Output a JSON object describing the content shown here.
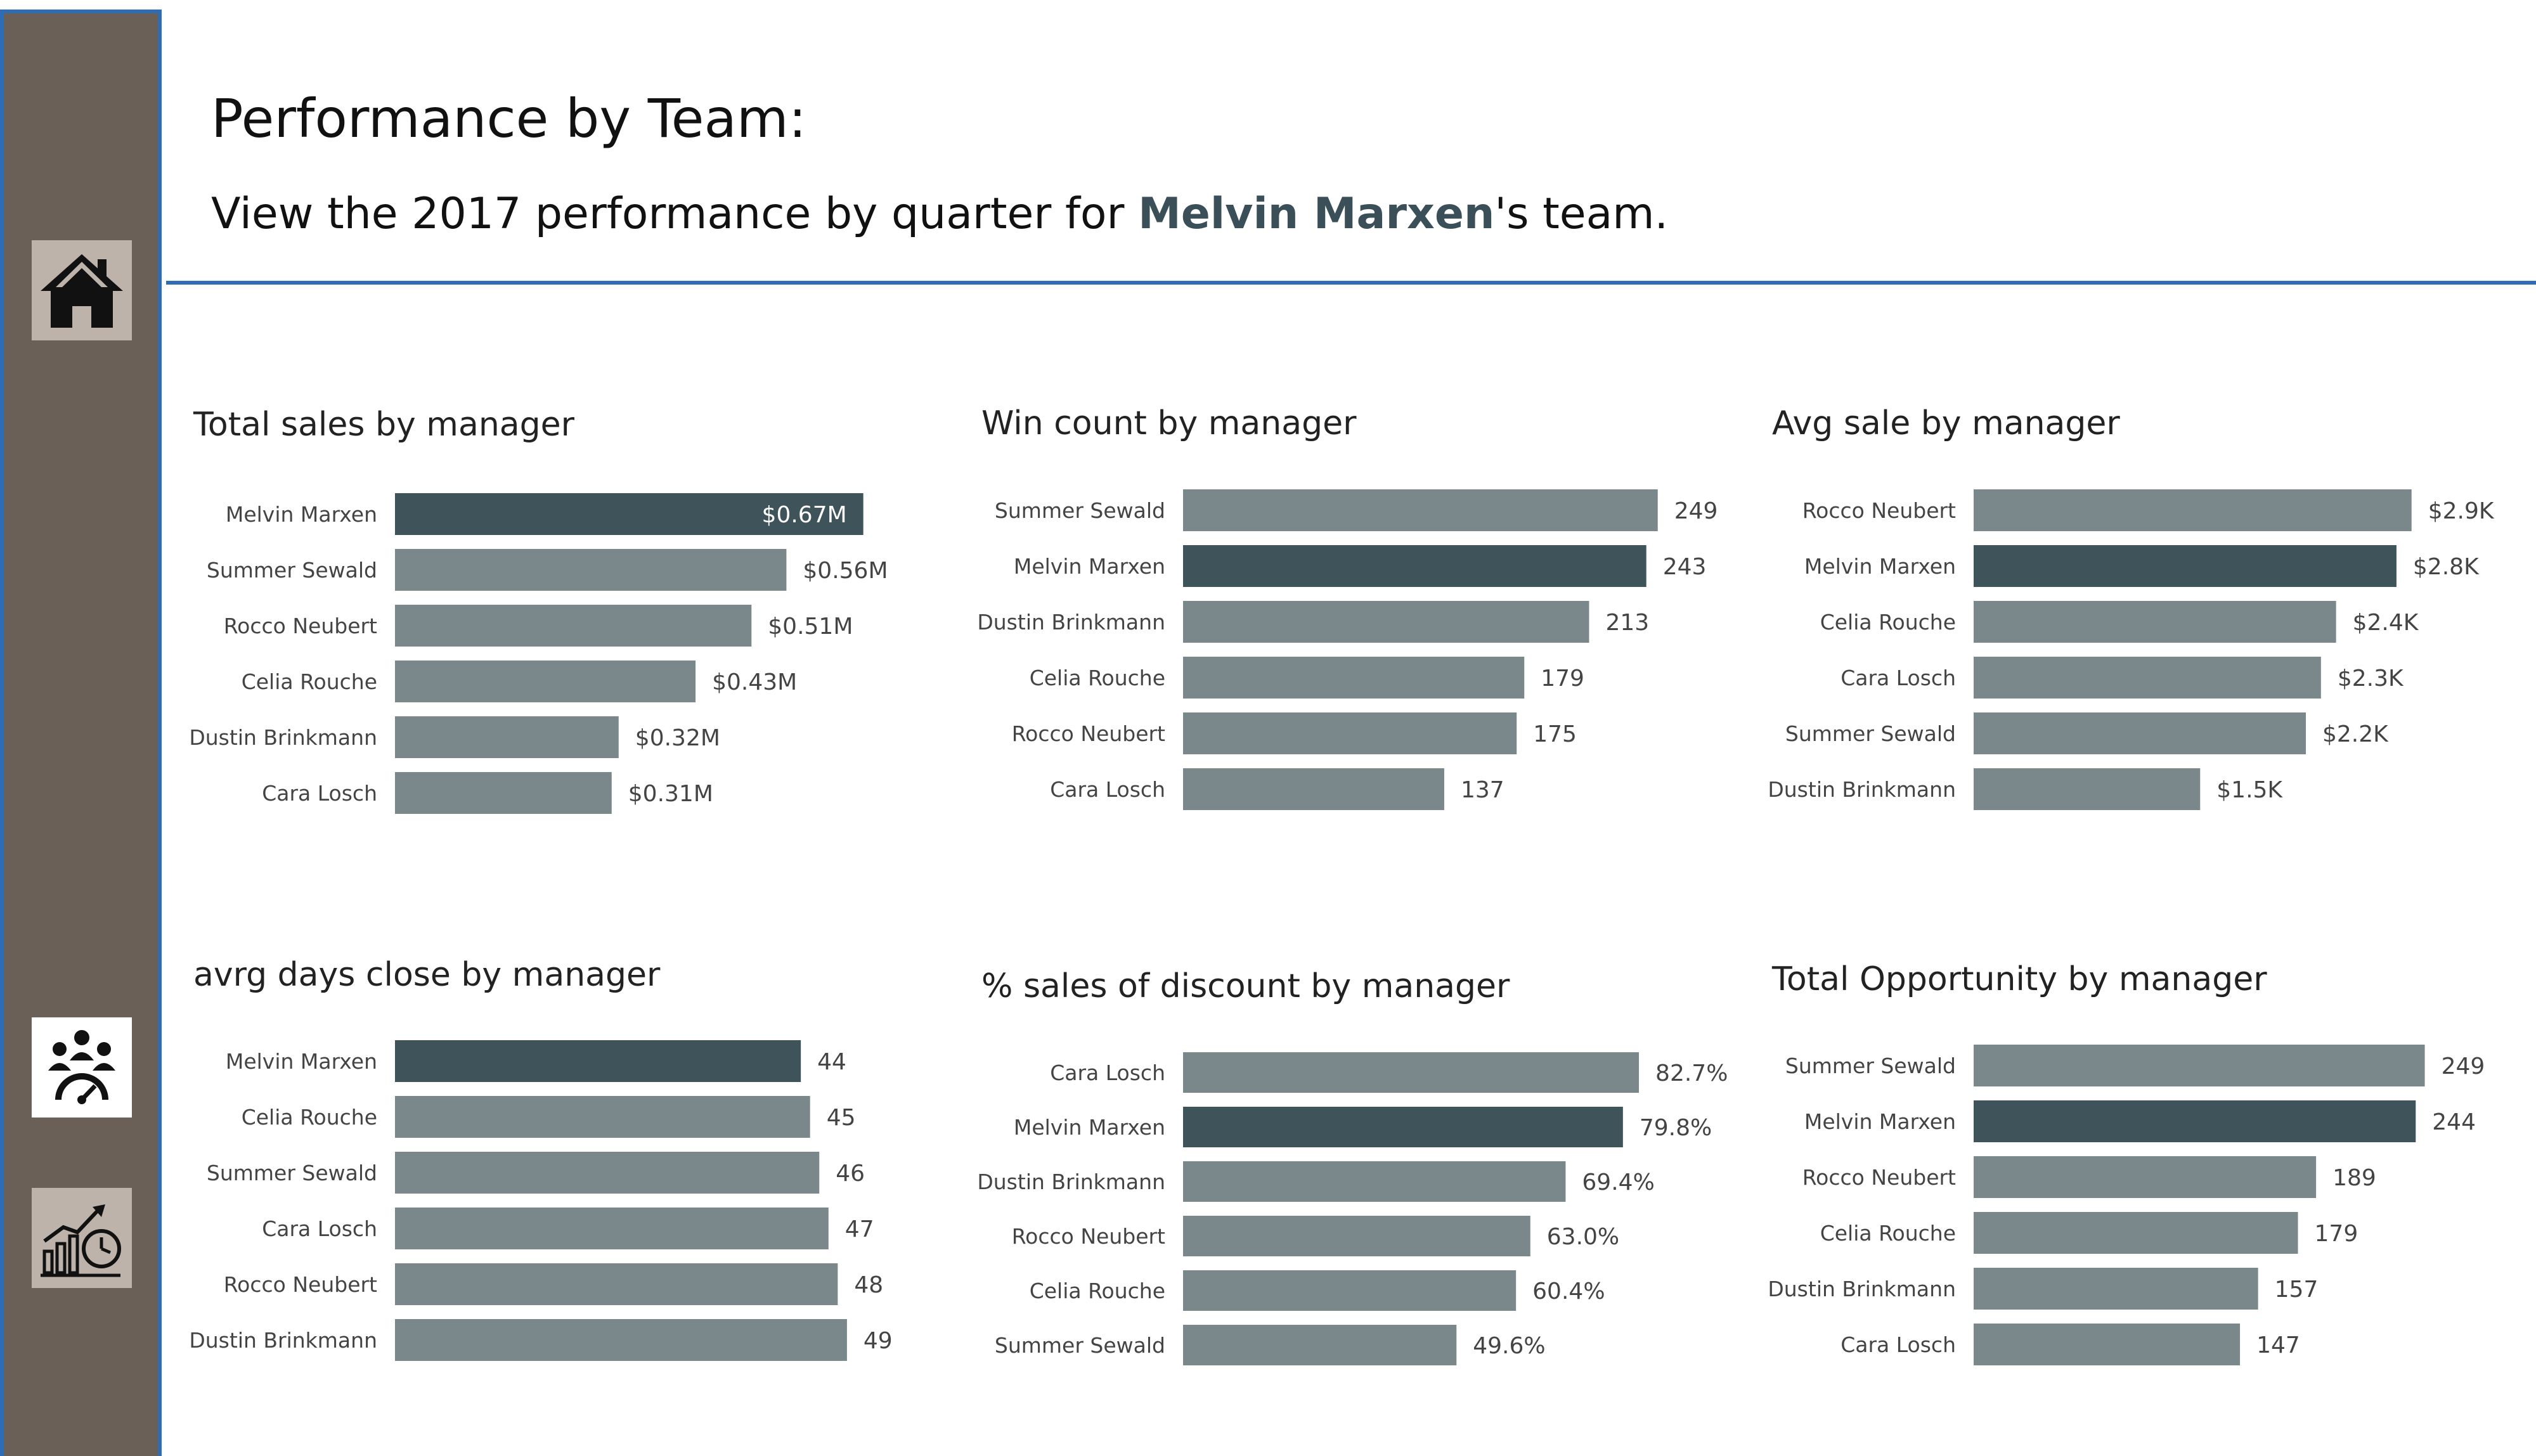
{
  "header": {
    "title": "Performance by Team:",
    "subtitle_prefix": "View the 2017 performance by quarter for ",
    "subtitle_name": "Melvin Marxen",
    "subtitle_suffix": "'s  team."
  },
  "sidebar": {
    "items": [
      {
        "icon": "home-icon"
      },
      {
        "icon": "team-performance-icon"
      },
      {
        "icon": "growth-chart-icon"
      }
    ]
  },
  "colors": {
    "bar_default": "#7a888b",
    "bar_highlight": "#3f535a",
    "sidebar": "#6b6058",
    "accent": "#2e6db5"
  },
  "chart_data": [
    {
      "type": "bar",
      "orientation": "horizontal",
      "title": "Total sales by manager",
      "categories": [
        "Melvin Marxen",
        "Summer Sewald",
        "Rocco Neubert",
        "Celia Rouche",
        "Dustin Brinkmann",
        "Cara Losch"
      ],
      "values": [
        0.67,
        0.56,
        0.51,
        0.43,
        0.32,
        0.31
      ],
      "labels": [
        "$0.67M",
        "$0.56M",
        "$0.51M",
        "$0.43M",
        "$0.32M",
        "$0.31M"
      ],
      "highlight": "Melvin Marxen",
      "xlim": [
        0,
        0.8
      ]
    },
    {
      "type": "bar",
      "orientation": "horizontal",
      "title": "Win count by manager",
      "categories": [
        "Summer Sewald",
        "Melvin Marxen",
        "Dustin Brinkmann",
        "Celia Rouche",
        "Rocco Neubert",
        "Cara Losch"
      ],
      "values": [
        249,
        243,
        213,
        179,
        175,
        137
      ],
      "labels": [
        "249",
        "243",
        "213",
        "179",
        "175",
        "137"
      ],
      "highlight": "Melvin Marxen",
      "xlim": [
        0,
        288
      ]
    },
    {
      "type": "bar",
      "orientation": "horizontal",
      "title": "Avg sale by manager",
      "categories": [
        "Rocco Neubert",
        "Melvin Marxen",
        "Celia Rouche",
        "Cara Losch",
        "Summer Sewald",
        "Dustin Brinkmann"
      ],
      "values": [
        2.9,
        2.8,
        2.4,
        2.3,
        2.2,
        1.5
      ],
      "labels": [
        "$2.9K",
        "$2.8K",
        "$2.4K",
        "$2.3K",
        "$2.2K",
        "$1.5K"
      ],
      "highlight": "Melvin Marxen",
      "xlim": [
        0,
        3.3
      ]
    },
    {
      "type": "bar",
      "orientation": "horizontal",
      "title": "avrg days close by manager",
      "categories": [
        "Melvin Marxen",
        "Celia Rouche",
        "Summer Sewald",
        "Cara Losch",
        "Rocco Neubert",
        "Dustin Brinkmann"
      ],
      "values": [
        44,
        45,
        46,
        47,
        48,
        49
      ],
      "labels": [
        "44",
        "45",
        "46",
        "47",
        "48",
        "49"
      ],
      "highlight": "Melvin Marxen",
      "xlim": [
        0,
        51
      ]
    },
    {
      "type": "bar",
      "orientation": "horizontal",
      "title": "% sales of discount by manager",
      "categories": [
        "Cara Losch",
        "Melvin Marxen",
        "Dustin Brinkmann",
        "Rocco Neubert",
        "Celia Rouche",
        "Summer Sewald"
      ],
      "values": [
        82.7,
        79.8,
        69.4,
        63.0,
        60.4,
        49.6
      ],
      "labels": [
        "82.7%",
        "79.8%",
        "69.4%",
        "63.0%",
        "60.4%",
        "49.6%"
      ],
      "highlight": "Melvin Marxen",
      "xlim": [
        0,
        95
      ]
    },
    {
      "type": "bar",
      "orientation": "horizontal",
      "title": "Total Opportunity by manager",
      "categories": [
        "Summer Sewald",
        "Melvin Marxen",
        "Rocco Neubert",
        "Celia Rouche",
        "Dustin Brinkmann",
        "Cara Losch"
      ],
      "values": [
        249,
        244,
        189,
        179,
        157,
        147
      ],
      "labels": [
        "249",
        "244",
        "189",
        "179",
        "157",
        "147"
      ],
      "highlight": "Melvin Marxen",
      "xlim": [
        0,
        260
      ]
    }
  ]
}
